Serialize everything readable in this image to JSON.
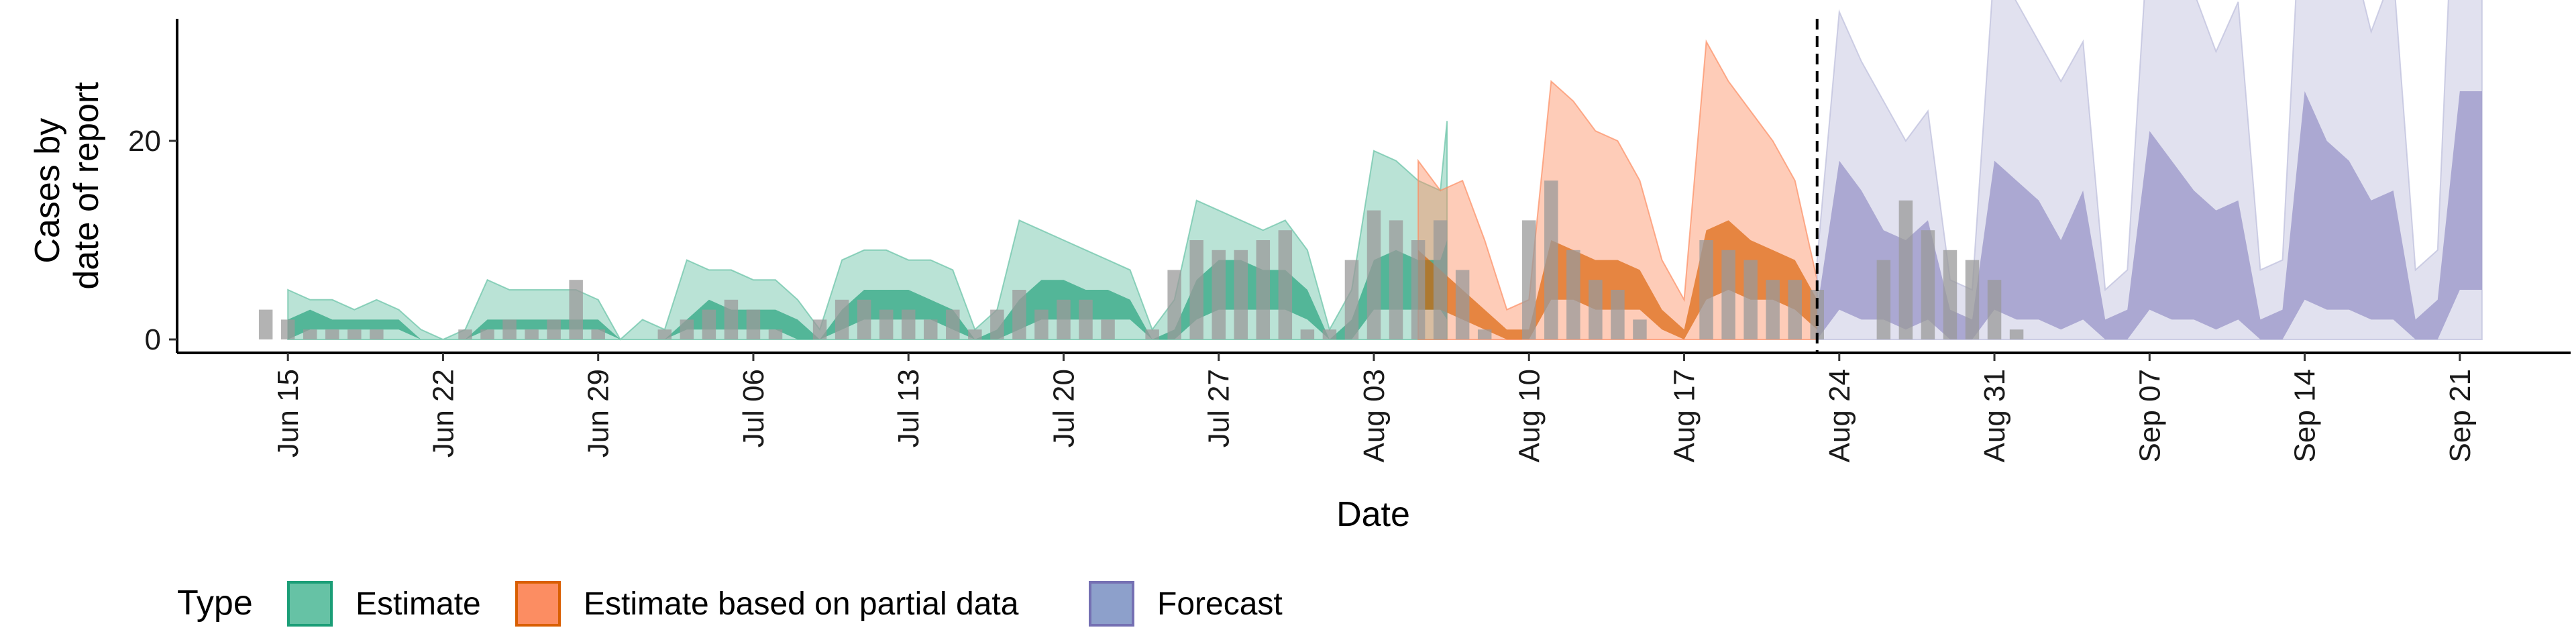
{
  "chart_data": {
    "type": "area",
    "xlabel": "Date",
    "ylabel_lines": [
      "Cases by",
      "date of report"
    ],
    "ylim": [
      0,
      64
    ],
    "yticks": [
      0,
      20,
      40,
      60
    ],
    "xlim": [
      "2024-06-10",
      "2024-09-26"
    ],
    "xticks": [
      {
        "date": "2024-06-15",
        "label": "Jun 15"
      },
      {
        "date": "2024-06-22",
        "label": "Jun 22"
      },
      {
        "date": "2024-06-29",
        "label": "Jun 29"
      },
      {
        "date": "2024-07-06",
        "label": "Jul 06"
      },
      {
        "date": "2024-07-13",
        "label": "Jul 13"
      },
      {
        "date": "2024-07-20",
        "label": "Jul 20"
      },
      {
        "date": "2024-07-27",
        "label": "Jul 27"
      },
      {
        "date": "2024-08-03",
        "label": "Aug 03"
      },
      {
        "date": "2024-08-10",
        "label": "Aug 10"
      },
      {
        "date": "2024-08-17",
        "label": "Aug 17"
      },
      {
        "date": "2024-08-24",
        "label": "Aug 24"
      },
      {
        "date": "2024-08-31",
        "label": "Aug 31"
      },
      {
        "date": "2024-09-07",
        "label": "Sep 07"
      },
      {
        "date": "2024-09-14",
        "label": "Sep 14"
      },
      {
        "date": "2024-09-21",
        "label": "Sep 21"
      }
    ],
    "vline_date": "2024-08-23",
    "legend": {
      "title": "Type",
      "position": "bottom",
      "items": [
        {
          "label": "Estimate",
          "fill": "#66c2a5",
          "stroke": "#1b9e77"
        },
        {
          "label": "Estimate based on partial data",
          "fill": "#fc8d62",
          "stroke": "#d95f02"
        },
        {
          "label": "Forecast",
          "fill": "#8da0cb",
          "stroke": "#7570b3"
        }
      ]
    },
    "series": [
      {
        "type": "Estimate",
        "outer_color": "#66c2a5",
        "inner_color": "#1b9e77",
        "start": "2024-06-15",
        "lower90": [
          0,
          0,
          0,
          0,
          0,
          0,
          0,
          0,
          0,
          0,
          0,
          0,
          0,
          0,
          0,
          0,
          0,
          0,
          0,
          0,
          0,
          0,
          0,
          0,
          0,
          0,
          0,
          0,
          0,
          0,
          0,
          0,
          0,
          0,
          0,
          0,
          0,
          0,
          0,
          0,
          0,
          0,
          0,
          0,
          0,
          0,
          0,
          0,
          0,
          0,
          0,
          0,
          0
        ],
        "lower50": [
          0,
          1,
          1,
          1,
          1,
          1,
          0,
          0,
          0,
          1,
          1,
          1,
          1,
          1,
          1,
          0,
          0,
          0,
          1,
          1,
          1,
          1,
          1,
          0,
          0,
          1,
          2,
          2,
          2,
          2,
          1,
          0,
          0,
          1,
          2,
          2,
          2,
          2,
          2,
          0,
          0,
          2,
          3,
          3,
          3,
          3,
          2,
          0,
          0,
          3,
          3,
          3,
          3
        ],
        "upper50": [
          2,
          3,
          2,
          2,
          2,
          2,
          0,
          0,
          0,
          2,
          2,
          2,
          2,
          2,
          2,
          0,
          0,
          0,
          2,
          4,
          3,
          3,
          3,
          2,
          0,
          3,
          5,
          5,
          5,
          4,
          3,
          0,
          1,
          4,
          6,
          6,
          5,
          5,
          4,
          0,
          1,
          6,
          8,
          8,
          7,
          7,
          5,
          0,
          2,
          8,
          9,
          8,
          8
        ],
        "upper90": [
          5,
          4,
          4,
          3,
          4,
          3,
          1,
          0,
          1,
          6,
          5,
          5,
          5,
          5,
          4,
          0,
          2,
          1,
          8,
          7,
          7,
          6,
          6,
          4,
          1,
          8,
          9,
          9,
          8,
          8,
          7,
          1,
          3,
          12,
          11,
          10,
          9,
          8,
          7,
          1,
          4,
          14,
          13,
          12,
          11,
          12,
          9,
          1,
          5,
          19,
          18,
          16,
          15
        ],
        "end_lower90": 0,
        "end_lower50": 2,
        "end_upper50": 10,
        "end_upper90": 22
      },
      {
        "type": "Estimate based on partial data",
        "outer_color": "#fc8d62",
        "inner_color": "#d95f02",
        "start": "2024-08-05",
        "lower90": [
          0,
          0,
          0,
          0,
          0,
          0,
          0,
          0,
          0,
          0,
          0,
          0,
          0,
          0,
          0,
          0,
          0,
          0,
          0
        ],
        "lower50": [
          3,
          3,
          2,
          1,
          0,
          0,
          4,
          4,
          3,
          3,
          3,
          1,
          0,
          4,
          5,
          4,
          4,
          3,
          1
        ],
        "upper50": [
          9,
          7,
          5,
          3,
          1,
          1,
          10,
          9,
          8,
          8,
          7,
          3,
          1,
          11,
          12,
          10,
          9,
          8,
          4
        ],
        "upper90": [
          18,
          15,
          16,
          10,
          3,
          4,
          26,
          24,
          21,
          20,
          16,
          8,
          4,
          30,
          26,
          23,
          20,
          16,
          6
        ]
      },
      {
        "type": "Forecast",
        "outer_color": "#bcbddc",
        "inner_color": "#8e89c2",
        "start": "2024-08-23",
        "lower90": [
          0,
          0,
          0,
          0,
          0,
          0,
          0,
          0,
          0,
          0,
          0,
          0,
          0,
          0,
          0,
          0,
          0,
          0,
          0,
          0,
          0,
          0,
          0,
          0,
          0,
          0,
          0,
          0,
          0,
          0,
          0
        ],
        "lower50": [
          0,
          3,
          2,
          2,
          1,
          2,
          0,
          0,
          3,
          2,
          2,
          1,
          2,
          0,
          0,
          3,
          2,
          2,
          1,
          2,
          0,
          0,
          4,
          3,
          3,
          2,
          2,
          0,
          0,
          5,
          5
        ],
        "upper50": [
          3,
          18,
          15,
          11,
          10,
          12,
          3,
          2,
          18,
          16,
          14,
          10,
          15,
          2,
          3,
          21,
          18,
          15,
          13,
          14,
          2,
          3,
          25,
          20,
          18,
          14,
          15,
          2,
          4,
          25,
          25
        ],
        "upper90": [
          8,
          33,
          28,
          24,
          20,
          23,
          6,
          5,
          38,
          34,
          30,
          26,
          30,
          5,
          7,
          43,
          38,
          35,
          29,
          34,
          7,
          8,
          52,
          46,
          40,
          31,
          37,
          7,
          9,
          61,
          61
        ]
      }
    ],
    "bars": {
      "color": "#9a9a9a",
      "start": "2024-06-14",
      "values": [
        3,
        2,
        1,
        1,
        1,
        1,
        0,
        0,
        0,
        1,
        1,
        2,
        1,
        2,
        6,
        1,
        0,
        0,
        1,
        2,
        3,
        4,
        3,
        1,
        0,
        2,
        4,
        4,
        3,
        3,
        2,
        3,
        1,
        3,
        5,
        3,
        4,
        4,
        2,
        0,
        1,
        7,
        10,
        9,
        9,
        10,
        11,
        1,
        1,
        8,
        13,
        12,
        10,
        12,
        7,
        1,
        0,
        12,
        16,
        9,
        6,
        5,
        2,
        0,
        0,
        10,
        9,
        8,
        6,
        6,
        5,
        0,
        0,
        8,
        14,
        11,
        9,
        8,
        6,
        1
      ]
    }
  }
}
